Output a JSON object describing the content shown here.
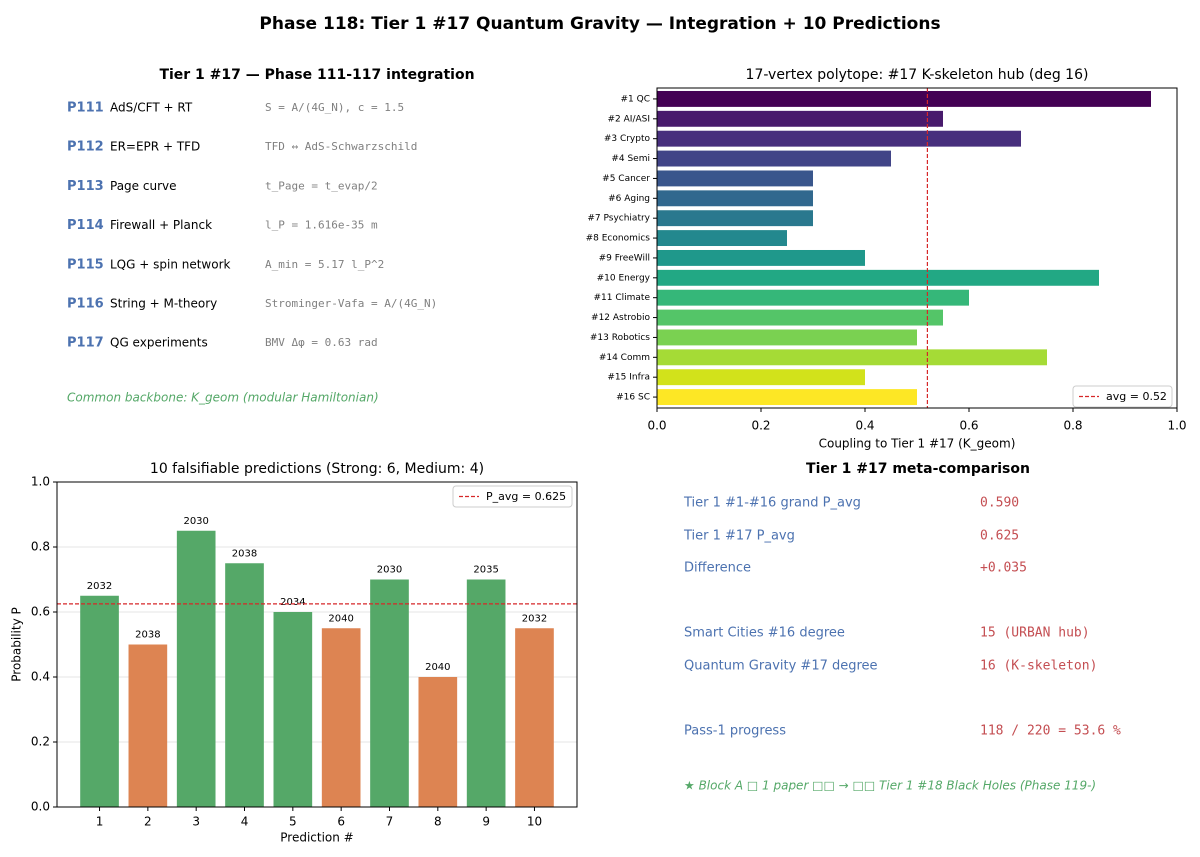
{
  "title": "Phase 118: Tier 1 #17 Quantum Gravity — Integration + 10 Predictions",
  "integration_panel": {
    "title": "Tier 1 #17 — Phase 111-117 integration",
    "rows": [
      {
        "id": "P111",
        "name": "AdS/CFT + RT",
        "formula": "S = A/(4G_N), c = 1.5"
      },
      {
        "id": "P112",
        "name": "ER=EPR + TFD",
        "formula": "TFD ↔ AdS-Schwarzschild"
      },
      {
        "id": "P113",
        "name": "Page curve",
        "formula": "t_Page = t_evap/2"
      },
      {
        "id": "P114",
        "name": "Firewall + Planck",
        "formula": "l_P = 1.616e-35 m"
      },
      {
        "id": "P115",
        "name": "LQG + spin network",
        "formula": "A_min = 5.17 l_P^2"
      },
      {
        "id": "P116",
        "name": "String + M-theory",
        "formula": "Strominger-Vafa = A/(4G_N)"
      },
      {
        "id": "P117",
        "name": "QG experiments",
        "formula": "BMV Δφ = 0.63 rad"
      }
    ],
    "footer": "Common backbone: K_geom (modular Hamiltonian)"
  },
  "meta_panel": {
    "title": "Tier 1 #17 meta-comparison",
    "rows": [
      {
        "label": "Tier 1 #1-#16 grand P_avg",
        "value": "0.590"
      },
      {
        "label": "Tier 1 #17 P_avg",
        "value": "0.625"
      },
      {
        "label": "Difference",
        "value": "+0.035"
      },
      {
        "label": "Smart Cities #16 degree",
        "value": "15 (URBAN hub)"
      },
      {
        "label": "Quantum Gravity #17 degree",
        "value": "16 (K-skeleton)"
      },
      {
        "label": "Pass-1 progress",
        "value": "118 / 220 = 53.6 %"
      }
    ],
    "footer": "★ Block A □ 1 paper □□ → □□ Tier 1 #18 Black Holes (Phase 119-)"
  },
  "chart_data": [
    {
      "type": "hbar",
      "title": "17-vertex polytope: #17 K-skeleton hub (deg 16)",
      "xlabel": "Coupling to Tier 1 #17 (K_geom)",
      "categories": [
        "#1 QC",
        "#2 AI/ASI",
        "#3 Crypto",
        "#4 Semi",
        "#5 Cancer",
        "#6 Aging",
        "#7 Psychiatry",
        "#8 Economics",
        "#9 FreeWill",
        "#10 Energy",
        "#11 Climate",
        "#12 Astrobio",
        "#13 Robotics",
        "#14 Comm",
        "#15 Infra",
        "#16 SC"
      ],
      "values": [
        0.95,
        0.55,
        0.7,
        0.45,
        0.3,
        0.3,
        0.3,
        0.25,
        0.4,
        0.85,
        0.6,
        0.55,
        0.5,
        0.75,
        0.4,
        0.5
      ],
      "colors": [
        "#440154",
        "#481a6c",
        "#472f7d",
        "#414487",
        "#39568c",
        "#31688e",
        "#2a788e",
        "#23888e",
        "#1f988b",
        "#22a884",
        "#35b779",
        "#54c568",
        "#7ad151",
        "#a5db36",
        "#d2e21b",
        "#fde725"
      ],
      "xlim": [
        0,
        1
      ],
      "xticks": [
        {
          "value": 0,
          "label": "0.0"
        },
        0.2,
        0.4,
        0.6,
        0.8,
        {
          "value": 1,
          "label": "1.0"
        }
      ],
      "reference_line": {
        "value": 0.52,
        "label": "avg = 0.52",
        "color": "#d62728"
      },
      "legend": "lower right"
    },
    {
      "type": "bar",
      "title": "10 falsifiable predictions (Strong: 6, Medium: 4)",
      "xlabel": "Prediction #",
      "ylabel": "Probability P",
      "categories": [
        "1",
        "2",
        "3",
        "4",
        "5",
        "6",
        "7",
        "8",
        "9",
        "10"
      ],
      "values": [
        0.65,
        0.5,
        0.85,
        0.75,
        0.6,
        0.55,
        0.7,
        0.4,
        0.7,
        0.55
      ],
      "bar_labels": [
        "2032",
        "2038",
        "2030",
        "2038",
        "2034",
        "2040",
        "2030",
        "2040",
        "2035",
        "2032"
      ],
      "colors": [
        "#55a868",
        "#dd8452",
        "#55a868",
        "#55a868",
        "#55a868",
        "#dd8452",
        "#55a868",
        "#dd8452",
        "#55a868",
        "#dd8452"
      ],
      "ylim": [
        0,
        1
      ],
      "yticks": [
        {
          "value": 0,
          "label": "0.0"
        },
        0.2,
        0.4,
        0.6,
        0.8,
        {
          "value": 1,
          "label": "1.0"
        }
      ],
      "grid": true,
      "reference_line": {
        "value": 0.625,
        "label": "P_avg = 0.625",
        "color": "#d62728"
      },
      "legend": "upper right"
    }
  ]
}
